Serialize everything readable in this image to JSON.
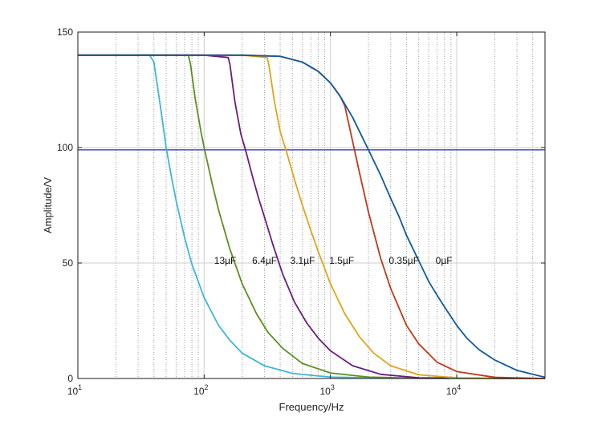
{
  "chart_data": {
    "type": "line",
    "title": "",
    "xlabel": "Frequency/Hz",
    "ylabel": "Amplitude/V",
    "xscale": "log",
    "xlim": [
      10,
      50000
    ],
    "ylim": [
      0,
      150
    ],
    "grid": true,
    "legend": "none",
    "x_ticks": [
      {
        "base": "10",
        "exp": "1",
        "value": 10
      },
      {
        "base": "10",
        "exp": "2",
        "value": 100
      },
      {
        "base": "10",
        "exp": "3",
        "value": 1000
      },
      {
        "base": "10",
        "exp": "4",
        "value": 10000
      }
    ],
    "y_ticks": [
      {
        "label": "0",
        "value": 0
      },
      {
        "label": "50",
        "value": 50
      },
      {
        "label": "100",
        "value": 100
      },
      {
        "label": "150",
        "value": 150
      }
    ],
    "reference_line": {
      "y": 99,
      "color": "#2a2aa8"
    },
    "series": [
      {
        "name": "13µF",
        "color": "#3bb7dc",
        "label_x": 120,
        "x": [
          10,
          25,
          37,
          40,
          45,
          50,
          55,
          60,
          70,
          80,
          100,
          130,
          160,
          200,
          300,
          500,
          1000,
          3000,
          50000
        ],
        "y": [
          140,
          140,
          140,
          137,
          118,
          100,
          87.5,
          77,
          61,
          49.5,
          35,
          23,
          16.5,
          11,
          5.5,
          2.2,
          0.6,
          0.1,
          0
        ]
      },
      {
        "name": "6.4µF",
        "color": "#5b8f1e",
        "label_x": 240,
        "x": [
          10,
          50,
          75,
          78,
          85,
          95,
          100,
          115,
          130,
          160,
          200,
          260,
          320,
          420,
          600,
          1000,
          2000,
          5000,
          50000
        ],
        "y": [
          140,
          140,
          140,
          136,
          121,
          106,
          100,
          85,
          73,
          56,
          41,
          28,
          20,
          13,
          6.5,
          2.4,
          0.6,
          0.1,
          0
        ]
      },
      {
        "name": "3.1µF",
        "color": "#6a1b7e",
        "label_x": 480,
        "x": [
          10,
          100,
          155,
          160,
          175,
          195,
          215,
          240,
          270,
          300,
          350,
          420,
          520,
          650,
          800,
          1000,
          1500,
          2500,
          5000,
          50000
        ],
        "y": [
          140,
          140,
          139,
          136,
          120,
          106,
          98,
          88,
          78,
          70,
          58,
          45,
          33,
          24,
          17.5,
          12,
          5.5,
          1.8,
          0.3,
          0
        ]
      },
      {
        "name": "1.5µF",
        "color": "#e0a419",
        "label_x": 980,
        "x": [
          10,
          200,
          315,
          325,
          360,
          400,
          450,
          520,
          600,
          700,
          800,
          1000,
          1300,
          1700,
          2200,
          3000,
          5000,
          10000,
          50000
        ],
        "y": [
          140,
          140,
          139,
          136,
          120,
          107,
          98,
          86,
          75,
          64,
          55,
          41,
          28,
          18,
          11,
          5.5,
          1.6,
          0.3,
          0
        ]
      },
      {
        "name": "0.35µF",
        "color": "#c0391a",
        "label_x": 2900,
        "x": [
          10,
          200,
          400,
          600,
          800,
          1000,
          1100,
          1200,
          1300,
          1400,
          1550,
          1700,
          2000,
          2500,
          3000,
          4000,
          5000,
          7000,
          10000,
          20000,
          50000
        ],
        "y": [
          140,
          140,
          139.5,
          137,
          133,
          128,
          125,
          122,
          118,
          110,
          99,
          89,
          72,
          52,
          39,
          23,
          15,
          7,
          3,
          0.5,
          0
        ]
      },
      {
        "name": "0µF",
        "color": "#0d5a9e",
        "label_x": 6800,
        "x": [
          10,
          200,
          400,
          600,
          800,
          1000,
          1200,
          1500,
          2000,
          2500,
          3000,
          3500,
          4000,
          5000,
          6000,
          7000,
          8000,
          10000,
          12000,
          15000,
          20000,
          30000,
          50000
        ],
        "y": [
          140,
          140,
          139.5,
          137,
          133,
          128,
          122,
          113,
          99,
          88,
          78,
          70,
          62,
          51,
          42,
          36,
          31,
          23,
          17.5,
          12.5,
          8,
          3.5,
          0.5
        ]
      }
    ]
  }
}
